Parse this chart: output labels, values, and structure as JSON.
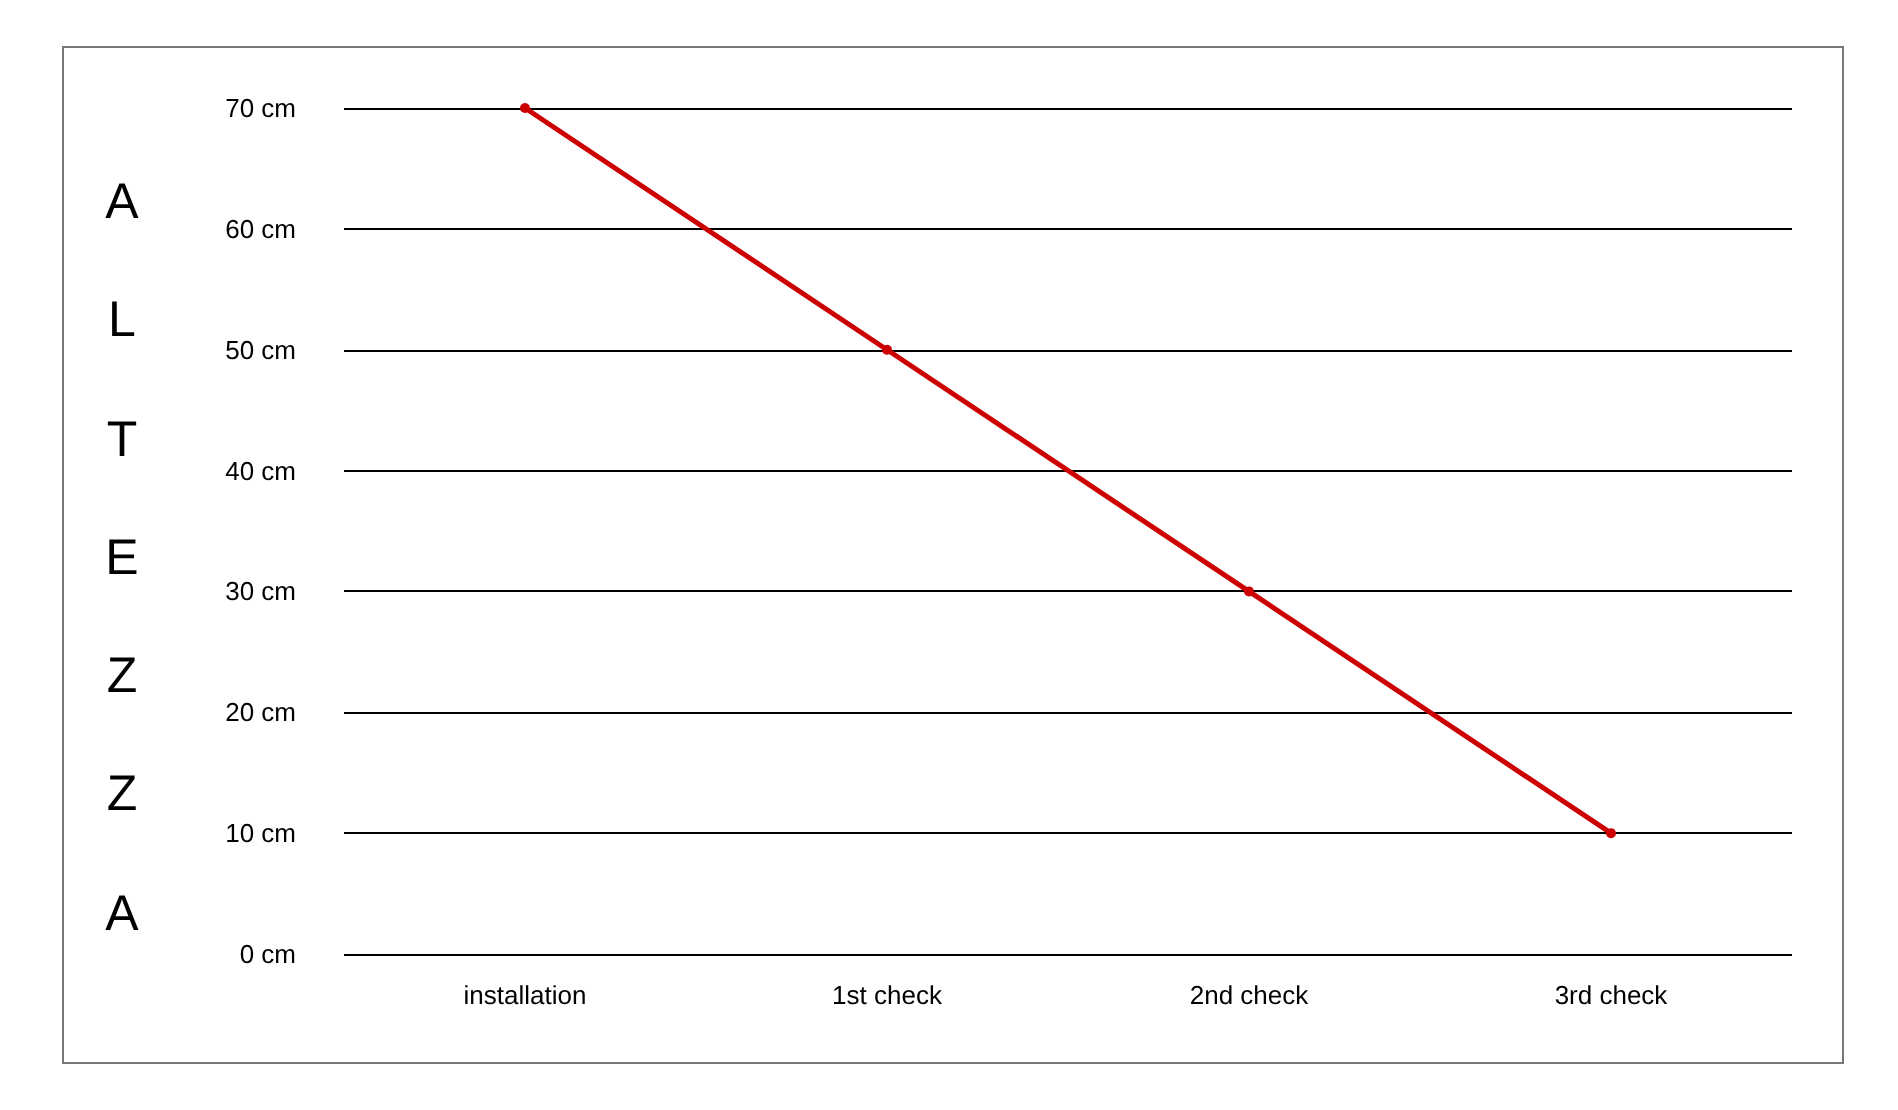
{
  "chart_data": {
    "type": "line",
    "ylabel": "ALTEZZA",
    "categories": [
      "installation",
      "1st check",
      "2nd check",
      "3rd check"
    ],
    "series": [
      {
        "color": "#cc0000",
        "values": [
          70,
          50,
          30,
          10
        ]
      }
    ],
    "ylim": [
      0,
      70
    ],
    "yticks": [
      {
        "value": 0,
        "label": "0 cm"
      },
      {
        "value": 10,
        "label": "10 cm"
      },
      {
        "value": 20,
        "label": "20 cm"
      },
      {
        "value": 30,
        "label": "30 cm"
      },
      {
        "value": 40,
        "label": "40 cm"
      },
      {
        "value": 50,
        "label": "50 cm"
      },
      {
        "value": 60,
        "label": "60 cm"
      },
      {
        "value": 70,
        "label": "70 cm"
      }
    ],
    "grid": "y",
    "marker": "circle",
    "line_style": "solid"
  }
}
